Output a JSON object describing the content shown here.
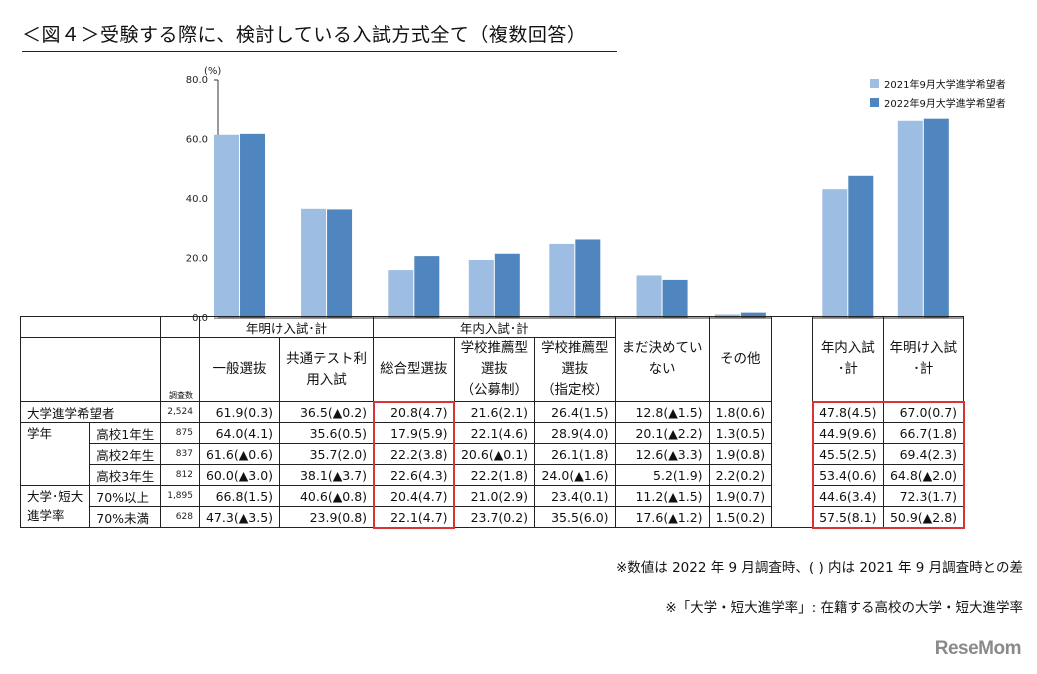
{
  "title": "＜図４＞受験する際に、検討している入試方式全て（複数回答）",
  "chart_data": {
    "type": "bar",
    "unit_label": "(%)",
    "ylim": [
      0,
      80
    ],
    "yticks": [
      "0.0",
      "20.0",
      "40.0",
      "60.0",
      "80.0"
    ],
    "legend": [
      {
        "name": "2021年9月大学進学希望者",
        "color": "#9dbde3"
      },
      {
        "name": "2022年9月大学進学希望者",
        "color": "#4f86bf"
      }
    ],
    "categories": [
      "一般選抜",
      "共通テスト利用入試",
      "総合型選抜",
      "学校推薦型選抜（公募制）",
      "学校推薦型選抜（指定校）",
      "まだ決めていない",
      "その他",
      "年内入試・計",
      "年明け入試・計"
    ],
    "series": [
      {
        "name": "2021年9月大学進学希望者",
        "values": [
          61.6,
          36.7,
          16.1,
          19.5,
          24.9,
          14.3,
          1.2,
          43.3,
          66.3
        ]
      },
      {
        "name": "2022年9月大学進学希望者",
        "values": [
          61.9,
          36.5,
          20.8,
          21.6,
          26.4,
          12.8,
          1.8,
          47.8,
          67.0
        ]
      }
    ],
    "legend_position": "top-right"
  },
  "table": {
    "header_groups": [
      "年明け入試･計",
      "年内入試･計"
    ],
    "n_label": "調査数",
    "col_headers": [
      "一般選抜",
      "共通テスト利\n用入試",
      "総合型選抜",
      "学校推薦型\n選抜\n（公募制）",
      "学校推薦型\n選抜\n（指定校）",
      "まだ決めてい\nない",
      "その他",
      "年内入試\n･計",
      "年明け入試\n･計"
    ],
    "rows": [
      {
        "group": "大学進学希望者",
        "sub": "",
        "n": "2,524",
        "cells": [
          "61.9(0.3)",
          "36.5(▲0.2)",
          "20.8(4.7)",
          "21.6(2.1)",
          "26.4(1.5)",
          "12.8(▲1.5)",
          "1.8(0.6)",
          "47.8(4.5)",
          "67.0(0.7)"
        ]
      },
      {
        "group": "学年",
        "sub": "高校1年生",
        "n": "875",
        "cells": [
          "64.0(4.1)",
          "35.6(0.5)",
          "17.9(5.9)",
          "22.1(4.6)",
          "28.9(4.0)",
          "20.1(▲2.2)",
          "1.3(0.5)",
          "44.9(9.6)",
          "66.7(1.8)"
        ]
      },
      {
        "group": "",
        "sub": "高校2年生",
        "n": "837",
        "cells": [
          "61.6(▲0.6)",
          "35.7(2.0)",
          "22.2(3.8)",
          "20.6(▲0.1)",
          "26.1(1.8)",
          "12.6(▲3.3)",
          "1.9(0.8)",
          "45.5(2.5)",
          "69.4(2.3)"
        ]
      },
      {
        "group": "",
        "sub": "高校3年生",
        "n": "812",
        "cells": [
          "60.0(▲3.0)",
          "38.1(▲3.7)",
          "22.6(4.3)",
          "22.2(1.8)",
          "24.0(▲1.6)",
          "5.2(1.9)",
          "2.2(0.2)",
          "53.4(0.6)",
          "64.8(▲2.0)"
        ]
      },
      {
        "group": "大学･短大\n進学率",
        "sub": "70%以上",
        "n": "1,895",
        "cells": [
          "66.8(1.5)",
          "40.6(▲0.8)",
          "20.4(4.7)",
          "21.0(2.9)",
          "23.4(0.1)",
          "11.2(▲1.5)",
          "1.9(0.7)",
          "44.6(3.4)",
          "72.3(1.7)"
        ]
      },
      {
        "group": "",
        "sub": "70%未満",
        "n": "628",
        "cells": [
          "47.3(▲3.5)",
          "23.9(0.8)",
          "22.1(4.7)",
          "23.7(0.2)",
          "35.5(6.0)",
          "17.6(▲1.2)",
          "1.5(0.2)",
          "57.5(8.1)",
          "50.9(▲2.8)"
        ]
      }
    ]
  },
  "notes": [
    "※数値は 2022 年 9 月調査時、( ) 内は 2021 年 9 月調査時との差",
    "※「大学・短大進学率」: 在籍する高校の大学・短大進学率"
  ],
  "logo": "ReseMom"
}
